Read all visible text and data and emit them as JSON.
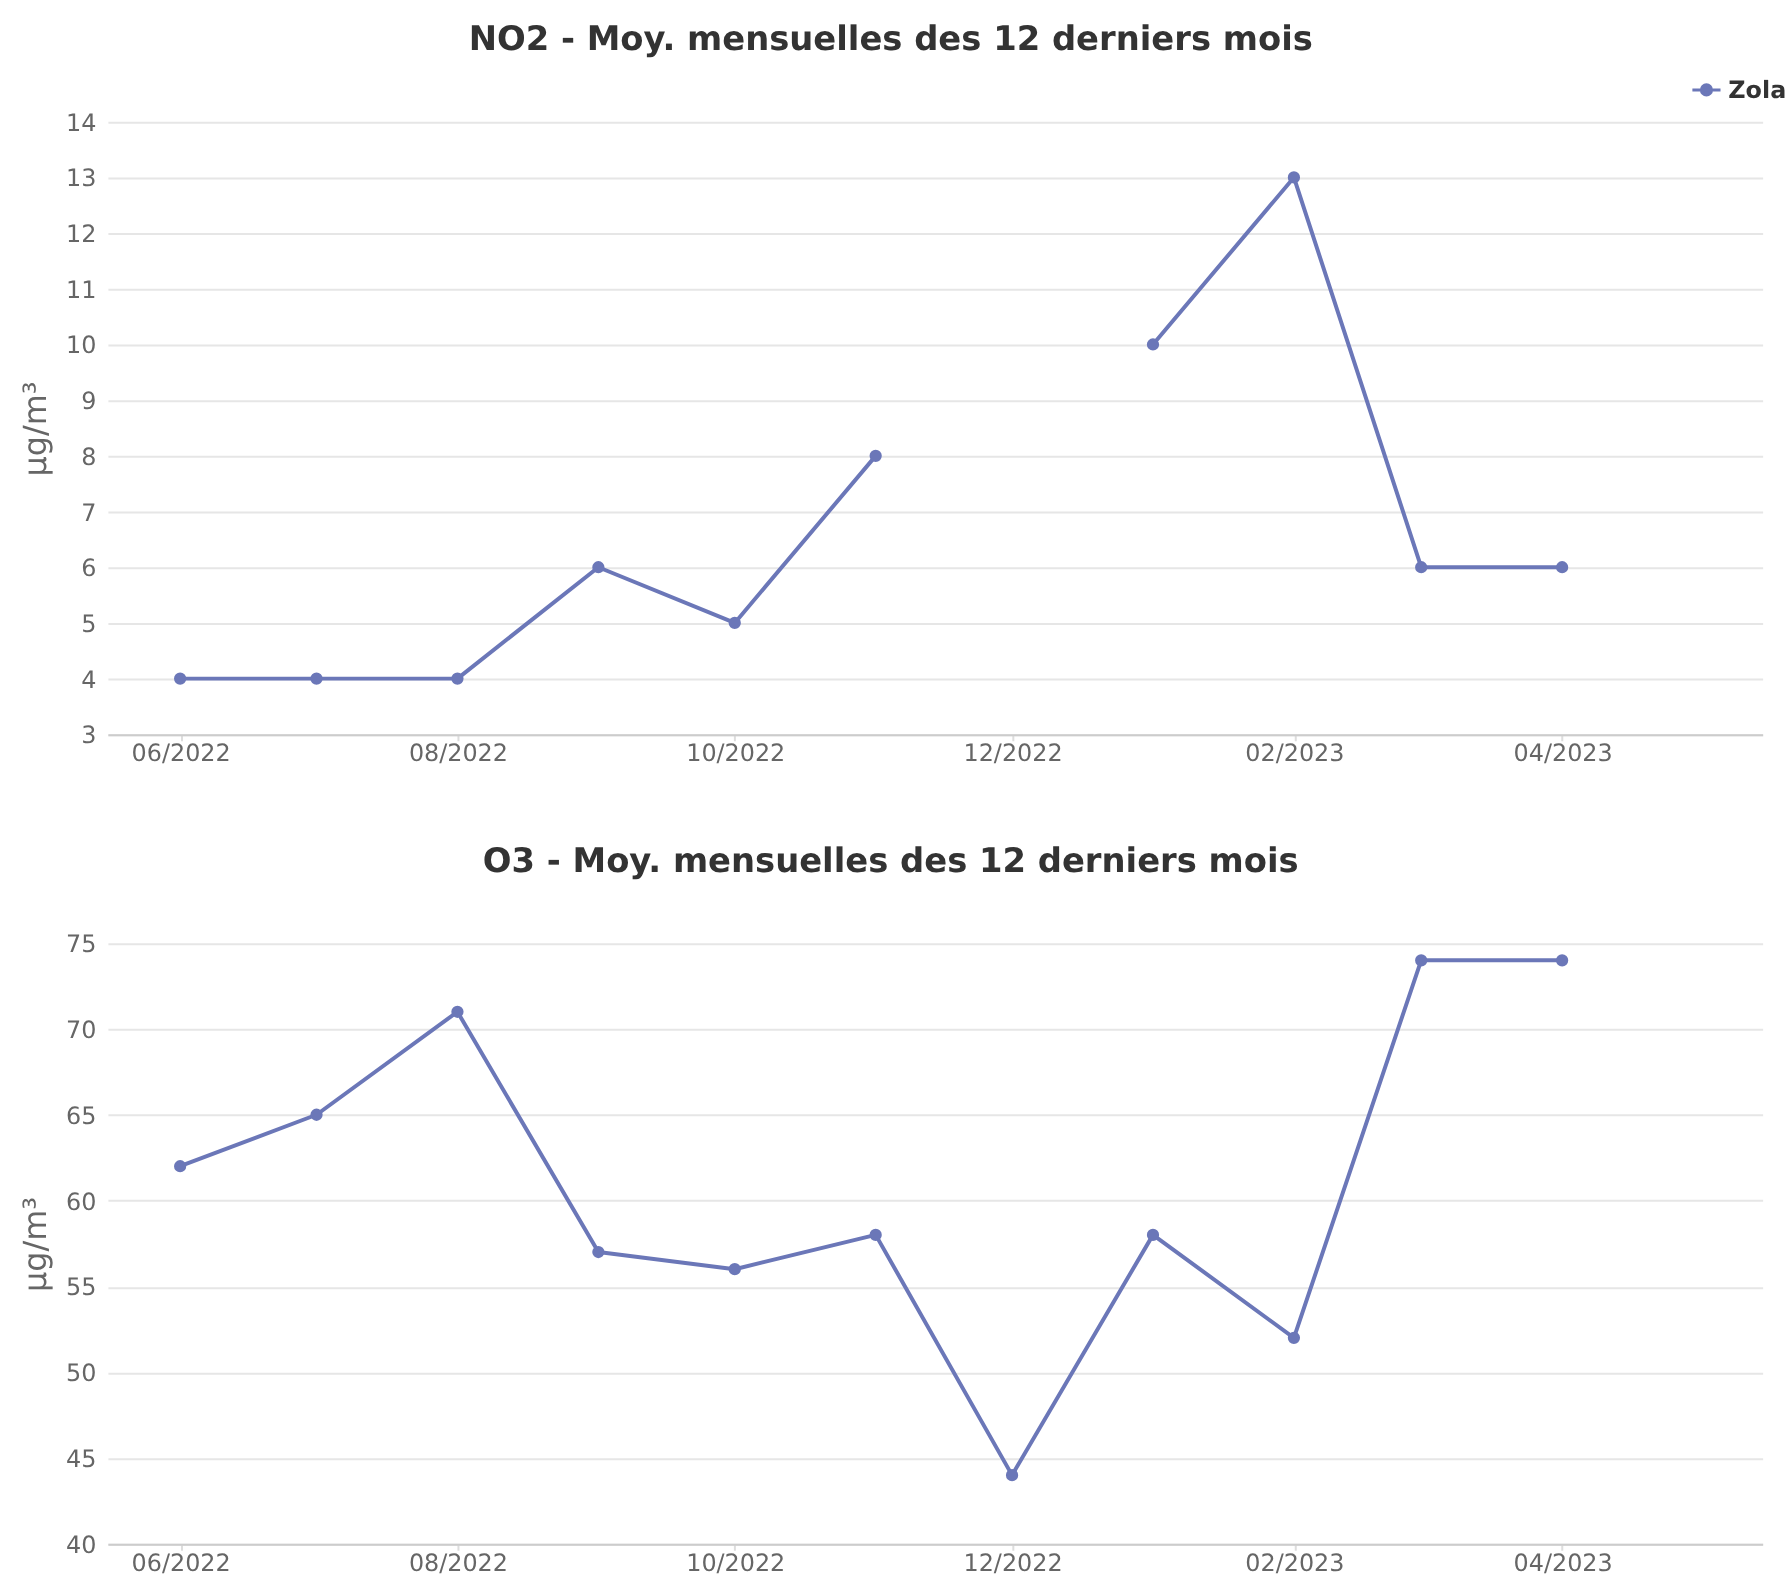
{
  "chart_data": [
    {
      "type": "line",
      "title": "NO2 - Moy. mensuelles des 12 derniers mois",
      "ylabel": "µg/m³",
      "x": [
        "2022-06",
        "2022-07",
        "2022-08",
        "2022-09",
        "2022-10",
        "2022-11",
        "2022-12",
        "2023-01",
        "2023-02",
        "2023-03",
        "2023-04"
      ],
      "series": [
        {
          "name": "Zola",
          "color": "#6b77b8",
          "values": [
            4,
            4,
            4,
            6,
            5,
            8,
            null,
            10,
            13,
            6,
            6
          ]
        }
      ],
      "xlim": [
        "2022-05-16",
        "2023-05-15"
      ],
      "xticks": [
        {
          "value": "2022-06",
          "label": "06/2022"
        },
        {
          "value": "2022-08",
          "label": "08/2022"
        },
        {
          "value": "2022-10",
          "label": "10/2022"
        },
        {
          "value": "2022-12",
          "label": "12/2022"
        },
        {
          "value": "2023-02",
          "label": "02/2023"
        },
        {
          "value": "2023-04",
          "label": "04/2023"
        }
      ],
      "ylim": [
        3,
        14
      ],
      "yticks": [
        3,
        4,
        5,
        6,
        7,
        8,
        9,
        10,
        11,
        12,
        13,
        14
      ],
      "grid": "y",
      "legend": "top right",
      "marker": "circle",
      "line_style": "solid"
    },
    {
      "type": "line",
      "title": "O3 - Moy. mensuelles des 12 derniers mois",
      "ylabel": "µg/m³",
      "x": [
        "2022-06",
        "2022-07",
        "2022-08",
        "2022-09",
        "2022-10",
        "2022-11",
        "2022-12",
        "2023-01",
        "2023-02",
        "2023-03",
        "2023-04"
      ],
      "series": [
        {
          "name": "Zola",
          "color": "#6b77b8",
          "values": [
            62,
            65,
            71,
            57,
            56,
            58,
            44,
            58,
            52,
            74,
            74
          ]
        }
      ],
      "xlim": [
        "2022-05-16",
        "2023-05-15"
      ],
      "xticks": [
        {
          "value": "2022-06",
          "label": "06/2022"
        },
        {
          "value": "2022-08",
          "label": "08/2022"
        },
        {
          "value": "2022-10",
          "label": "10/2022"
        },
        {
          "value": "2022-12",
          "label": "12/2022"
        },
        {
          "value": "2023-02",
          "label": "02/2023"
        },
        {
          "value": "2023-04",
          "label": "04/2023"
        }
      ],
      "ylim": [
        40,
        75
      ],
      "yticks": [
        40,
        45,
        50,
        55,
        60,
        65,
        70,
        75
      ],
      "grid": "y",
      "legend": "top right",
      "marker": "circle",
      "line_style": "solid"
    }
  ]
}
